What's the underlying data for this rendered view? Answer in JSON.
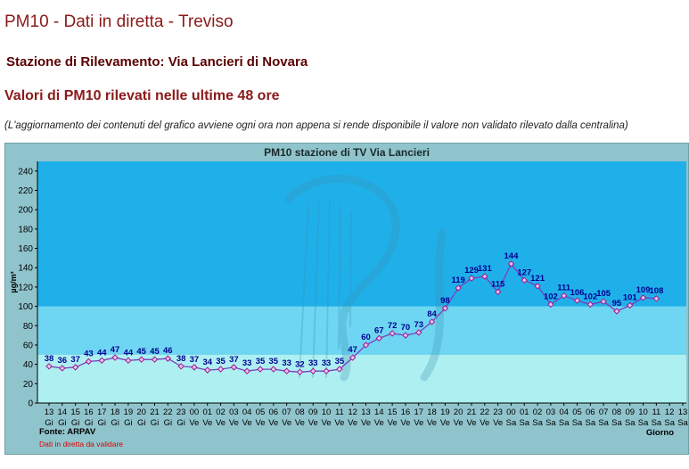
{
  "page": {
    "title": "PM10 - Dati in diretta - Treviso",
    "station": "Stazione di Rilevamento: Via Lancieri di Novara",
    "subtitle": "Valori di PM10 rilevati nelle ultime 48 ore",
    "note": "(L'aggiornamento dei contenuti del grafico avviene ogni ora non appena si rende disponibile il valore non validato rilevato dalla centralina)"
  },
  "colors": {
    "band_high": "#1fb0ea",
    "band_mid": "#6ed6f2",
    "band_low": "#aef0f2",
    "line": "#7a3fc0",
    "marker": "#a01a8a",
    "label": "#000090",
    "panel": "#90c4cc"
  },
  "chart_data": {
    "type": "line",
    "title": "PM10 stazione di TV Via Lancieri",
    "ylabel": "µg/m³",
    "xlabel": "Giorno",
    "ylim": [
      0,
      250
    ],
    "yticks": [
      0,
      20,
      40,
      60,
      80,
      100,
      120,
      140,
      160,
      180,
      200,
      220,
      240
    ],
    "bands": [
      {
        "from": 0,
        "to": 50,
        "color": "#aef0f2"
      },
      {
        "from": 50,
        "to": 100,
        "color": "#6ed6f2"
      },
      {
        "from": 100,
        "to": 250,
        "color": "#1fb0ea"
      }
    ],
    "x_hours": [
      "13",
      "14",
      "15",
      "16",
      "17",
      "18",
      "19",
      "20",
      "21",
      "22",
      "23",
      "00",
      "01",
      "02",
      "03",
      "04",
      "05",
      "06",
      "07",
      "08",
      "09",
      "10",
      "11",
      "12",
      "13",
      "14",
      "15",
      "16",
      "17",
      "18",
      "19",
      "20",
      "21",
      "22",
      "23",
      "00",
      "01",
      "02",
      "03",
      "04",
      "05",
      "06",
      "07",
      "08",
      "09",
      "10",
      "11",
      "12",
      "13"
    ],
    "x_days": [
      "Gi",
      "Gi",
      "Gi",
      "Gi",
      "Gi",
      "Gi",
      "Gi",
      "Gi",
      "Gi",
      "Gi",
      "Gi",
      "Ve",
      "Ve",
      "Ve",
      "Ve",
      "Ve",
      "Ve",
      "Ve",
      "Ve",
      "Ve",
      "Ve",
      "Ve",
      "Ve",
      "Ve",
      "Ve",
      "Ve",
      "Ve",
      "Ve",
      "Ve",
      "Ve",
      "Ve",
      "Ve",
      "Ve",
      "Ve",
      "Ve",
      "Sa",
      "Sa",
      "Sa",
      "Sa",
      "Sa",
      "Sa",
      "Sa",
      "Sa",
      "Sa",
      "Sa",
      "Sa",
      "Sa",
      "Sa",
      "Sa"
    ],
    "series": [
      {
        "values": [
          38,
          36,
          37,
          43,
          44,
          47,
          44,
          45,
          45,
          46,
          38,
          37,
          34,
          35,
          37,
          33,
          35,
          35,
          33,
          32,
          33,
          33,
          35,
          47,
          60,
          67,
          72,
          70,
          73,
          84,
          98,
          119,
          129,
          131,
          115,
          144,
          127,
          121,
          102,
          111,
          106,
          102,
          105,
          95,
          101,
          109,
          108
        ]
      }
    ],
    "legend": "none",
    "grid": false,
    "source": "Fonte: ARPAV",
    "disclaimer": "Dati in diretta da validare"
  }
}
